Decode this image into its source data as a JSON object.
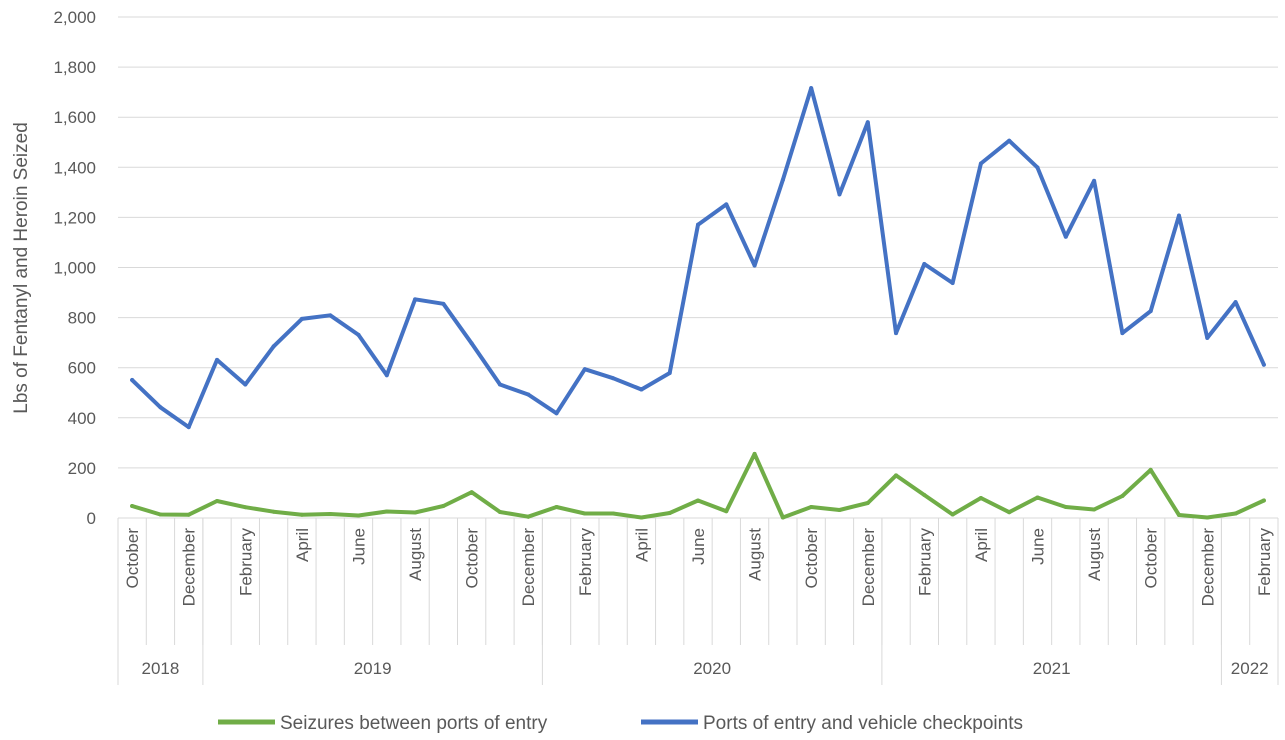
{
  "chart_data": {
    "type": "line",
    "title": "",
    "xlabel": "",
    "ylabel": "Lbs of Fentanyl and Heroin Seized",
    "ylim": [
      0,
      2000
    ],
    "ytick_step": 200,
    "grid": "horizontal",
    "legend_position": "bottom",
    "x": [
      "2018-10",
      "2018-11",
      "2018-12",
      "2019-01",
      "2019-02",
      "2019-03",
      "2019-04",
      "2019-05",
      "2019-06",
      "2019-07",
      "2019-08",
      "2019-09",
      "2019-10",
      "2019-11",
      "2019-12",
      "2020-01",
      "2020-02",
      "2020-03",
      "2020-04",
      "2020-05",
      "2020-06",
      "2020-07",
      "2020-08",
      "2020-09",
      "2020-10",
      "2020-11",
      "2020-12",
      "2021-01",
      "2021-02",
      "2021-03",
      "2021-04",
      "2021-05",
      "2021-06",
      "2021-07",
      "2021-08",
      "2021-09",
      "2021-10",
      "2021-11",
      "2021-12",
      "2022-01",
      "2022-02"
    ],
    "month_tick_labels": [
      {
        "index": 0,
        "label": "October"
      },
      {
        "index": 2,
        "label": "December"
      },
      {
        "index": 4,
        "label": "February"
      },
      {
        "index": 6,
        "label": "April"
      },
      {
        "index": 8,
        "label": "June"
      },
      {
        "index": 10,
        "label": "August"
      },
      {
        "index": 12,
        "label": "October"
      },
      {
        "index": 14,
        "label": "December"
      },
      {
        "index": 16,
        "label": "February"
      },
      {
        "index": 18,
        "label": "April"
      },
      {
        "index": 20,
        "label": "June"
      },
      {
        "index": 22,
        "label": "August"
      },
      {
        "index": 24,
        "label": "October"
      },
      {
        "index": 26,
        "label": "December"
      },
      {
        "index": 28,
        "label": "February"
      },
      {
        "index": 30,
        "label": "April"
      },
      {
        "index": 32,
        "label": "June"
      },
      {
        "index": 34,
        "label": "August"
      },
      {
        "index": 36,
        "label": "October"
      },
      {
        "index": 38,
        "label": "December"
      },
      {
        "index": 40,
        "label": "February"
      }
    ],
    "year_groups": [
      {
        "label": "2018",
        "start": 0,
        "end": 2
      },
      {
        "label": "2019",
        "start": 3,
        "end": 14
      },
      {
        "label": "2020",
        "start": 15,
        "end": 26
      },
      {
        "label": "2021",
        "start": 27,
        "end": 38
      },
      {
        "label": "2022",
        "start": 39,
        "end": 40
      }
    ],
    "series": [
      {
        "name": "Seizures between ports of entry",
        "color": "#70ad47",
        "values": [
          48,
          14,
          13,
          68,
          43,
          25,
          13,
          16,
          10,
          26,
          22,
          48,
          103,
          24,
          5,
          44,
          18,
          18,
          2,
          20,
          70,
          27,
          256,
          2,
          44,
          32,
          60,
          170,
          92,
          14,
          80,
          23,
          82,
          44,
          34,
          88,
          192,
          12,
          2,
          18,
          70
        ]
      },
      {
        "name": "Ports of entry and vehicle checkpoints",
        "color": "#4472c4",
        "values": [
          551,
          442,
          363,
          631,
          533,
          685,
          795,
          809,
          731,
          570,
          873,
          855,
          697,
          533,
          493,
          418,
          594,
          558,
          513,
          579,
          1171,
          1252,
          1008,
          1350,
          1716,
          1292,
          1580,
          738,
          1014,
          938,
          1415,
          1506,
          1399,
          1123,
          1346,
          738,
          826,
          1207,
          719,
          862,
          612
        ]
      }
    ]
  }
}
